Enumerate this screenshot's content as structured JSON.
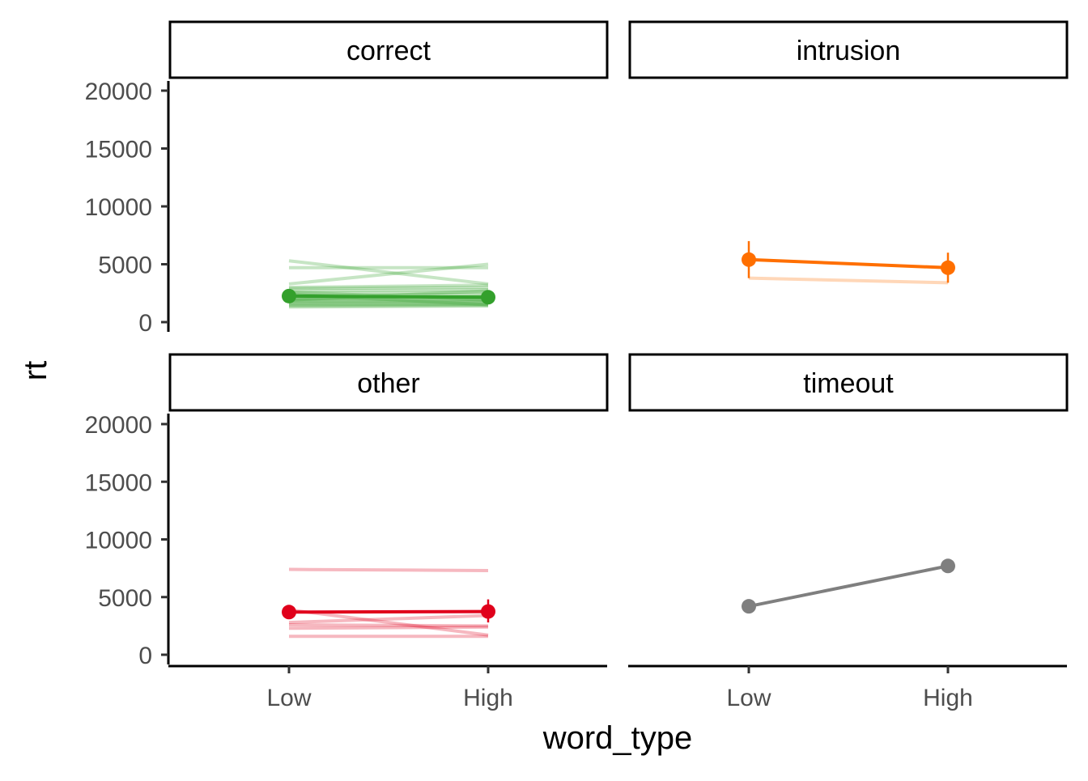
{
  "chart_data": {
    "type": "line",
    "xlabel": "word_type",
    "ylabel": "rt",
    "categories": [
      "Low",
      "High"
    ],
    "ylim": [
      0,
      20000
    ],
    "yticks": [
      0,
      5000,
      10000,
      15000,
      20000
    ],
    "yticklabels": [
      "0",
      "5000",
      "10000",
      "15000",
      "20000"
    ],
    "grid": false,
    "legend": "none",
    "panels": [
      {
        "facet": "correct",
        "color": "#33a02c",
        "mean": {
          "values": [
            2250,
            2150
          ],
          "error": [
            [
              2000,
              2500
            ],
            [
              1900,
              2400
            ]
          ]
        },
        "individual": [
          [
            5300,
            3300
          ],
          [
            4700,
            4700
          ],
          [
            3300,
            5000
          ],
          [
            3000,
            3200
          ],
          [
            2900,
            3000
          ],
          [
            2700,
            2800
          ],
          [
            2500,
            2600
          ],
          [
            2300,
            2400
          ],
          [
            2100,
            2250
          ],
          [
            2000,
            2100
          ],
          [
            1900,
            1950
          ],
          [
            1800,
            1850
          ],
          [
            1700,
            1750
          ],
          [
            1600,
            1650
          ],
          [
            1500,
            1550
          ],
          [
            1400,
            1450
          ],
          [
            1300,
            1400
          ],
          [
            2600,
            1900
          ],
          [
            1900,
            2700
          ],
          [
            2400,
            1500
          ]
        ]
      },
      {
        "facet": "intrusion",
        "color": "#ff6f00",
        "mean": {
          "values": [
            5400,
            4700
          ],
          "error": [
            [
              3800,
              7000
            ],
            [
              3400,
              6000
            ]
          ]
        },
        "individual": [
          [
            3800,
            3400
          ]
        ]
      },
      {
        "facet": "other",
        "color": "#e0001b",
        "mean": {
          "values": [
            3700,
            3750
          ],
          "error": [
            [
              3500,
              3900
            ],
            [
              2800,
              4800
            ]
          ]
        },
        "individual": [
          [
            7400,
            7300
          ],
          [
            3900,
            1700
          ],
          [
            2800,
            3400
          ],
          [
            2300,
            2400
          ],
          [
            1600,
            1600
          ],
          [
            2600,
            2500
          ]
        ]
      },
      {
        "facet": "timeout",
        "color": "#7f7f7f",
        "mean": {
          "values": [
            4200,
            7700
          ],
          "error": []
        },
        "individual": []
      }
    ]
  }
}
